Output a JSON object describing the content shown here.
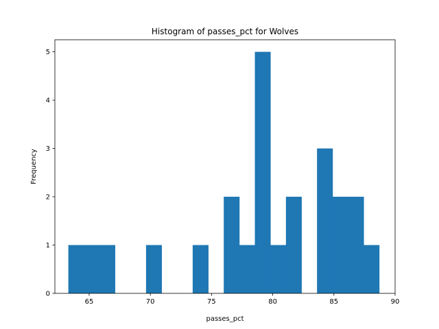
{
  "chart_data": {
    "type": "bar",
    "title": "Histogram of passes_pct for Wolves",
    "xlabel": "passes_pct",
    "ylabel": "Frequency",
    "xlim": [
      62.2,
      90.0
    ],
    "ylim": [
      0,
      5.25
    ],
    "xticks": [
      65,
      70,
      75,
      80,
      85,
      90
    ],
    "yticks": [
      0,
      1,
      2,
      3,
      4,
      5
    ],
    "bin_width": 1.27,
    "bins": [
      {
        "x0": 63.3,
        "x1": 64.57,
        "count": 1
      },
      {
        "x0": 64.57,
        "x1": 65.84,
        "count": 1
      },
      {
        "x0": 65.84,
        "x1": 67.11,
        "count": 1
      },
      {
        "x0": 67.11,
        "x1": 68.38,
        "count": 0
      },
      {
        "x0": 68.38,
        "x1": 69.65,
        "count": 0
      },
      {
        "x0": 69.65,
        "x1": 70.92,
        "count": 1
      },
      {
        "x0": 70.92,
        "x1": 72.19,
        "count": 0
      },
      {
        "x0": 72.19,
        "x1": 73.46,
        "count": 0
      },
      {
        "x0": 73.46,
        "x1": 74.73,
        "count": 1
      },
      {
        "x0": 74.73,
        "x1": 76.0,
        "count": 0
      },
      {
        "x0": 76.0,
        "x1": 77.27,
        "count": 2
      },
      {
        "x0": 77.27,
        "x1": 78.54,
        "count": 1
      },
      {
        "x0": 78.54,
        "x1": 79.81,
        "count": 5
      },
      {
        "x0": 79.81,
        "x1": 81.08,
        "count": 1
      },
      {
        "x0": 81.08,
        "x1": 82.35,
        "count": 2
      },
      {
        "x0": 82.35,
        "x1": 83.62,
        "count": 0
      },
      {
        "x0": 83.62,
        "x1": 84.89,
        "count": 3
      },
      {
        "x0": 84.89,
        "x1": 86.16,
        "count": 2
      },
      {
        "x0": 86.16,
        "x1": 87.43,
        "count": 2
      },
      {
        "x0": 87.43,
        "x1": 88.7,
        "count": 1
      }
    ],
    "bar_color": "#1f77b4",
    "grid": false
  }
}
